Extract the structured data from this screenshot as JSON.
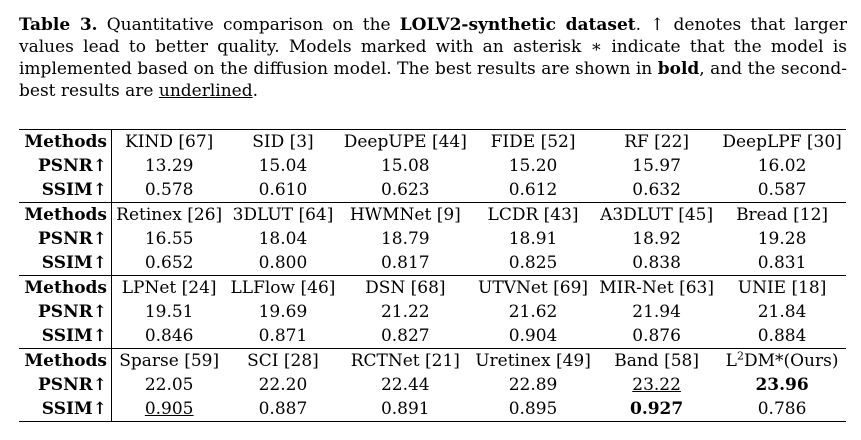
{
  "caption": {
    "label": "Table 3.",
    "text_1": "Quantitative comparison on the",
    "dataset": "LOLV2-synthetic dataset",
    "text_2": ". ↑ denotes that larger values lead to better quality. Models marked with an asterisk ∗ indicate that the model is implemented based on the diffusion model. The best results are shown in",
    "bold_word": "bold",
    "text_3": ", and the second-best results are",
    "underline_word": "underlined",
    "text_4": "."
  },
  "row_labels": {
    "methods": "Methods",
    "psnr": "PSNR↑",
    "ssim": "SSIM↑"
  },
  "blocks": [
    {
      "methods": [
        "KIND [67]",
        "SID [3]",
        "DeepUPE [44]",
        "FIDE [52]",
        "RF [22]",
        "DeepLPF [30]"
      ],
      "psnr": [
        "13.29",
        "15.04",
        "15.08",
        "15.20",
        "15.97",
        "16.02"
      ],
      "ssim": [
        "0.578",
        "0.610",
        "0.623",
        "0.612",
        "0.632",
        "0.587"
      ]
    },
    {
      "methods": [
        "Retinex [26]",
        "3DLUT [64]",
        "HWMNet [9]",
        "LCDR [43]",
        "A3DLUT [45]",
        "Bread [12]"
      ],
      "psnr": [
        "16.55",
        "18.04",
        "18.79",
        "18.91",
        "18.92",
        "19.28"
      ],
      "ssim": [
        "0.652",
        "0.800",
        "0.817",
        "0.825",
        "0.838",
        "0.831"
      ]
    },
    {
      "methods": [
        "LPNet [24]",
        "LLFlow [46]",
        "DSN [68]",
        "UTVNet [69]",
        "MIR-Net [63]",
        "UNIE [18]"
      ],
      "psnr": [
        "19.51",
        "19.69",
        "21.22",
        "21.62",
        "21.94",
        "21.84"
      ],
      "ssim": [
        "0.846",
        "0.871",
        "0.827",
        "0.904",
        "0.876",
        "0.884"
      ]
    },
    {
      "methods": [
        "Sparse [59]",
        "SCI [28]",
        "RCTNet [21]",
        "Uretinex [49]",
        "Band [58]",
        "L"
      ],
      "method_last_sup": "2",
      "method_last_rest": "DM*(Ours)",
      "psnr": [
        "22.05",
        "22.20",
        "22.44",
        "22.89",
        "23.22",
        "23.96"
      ],
      "ssim": [
        "0.905",
        "0.887",
        "0.891",
        "0.895",
        "0.927",
        "0.786"
      ]
    }
  ]
}
